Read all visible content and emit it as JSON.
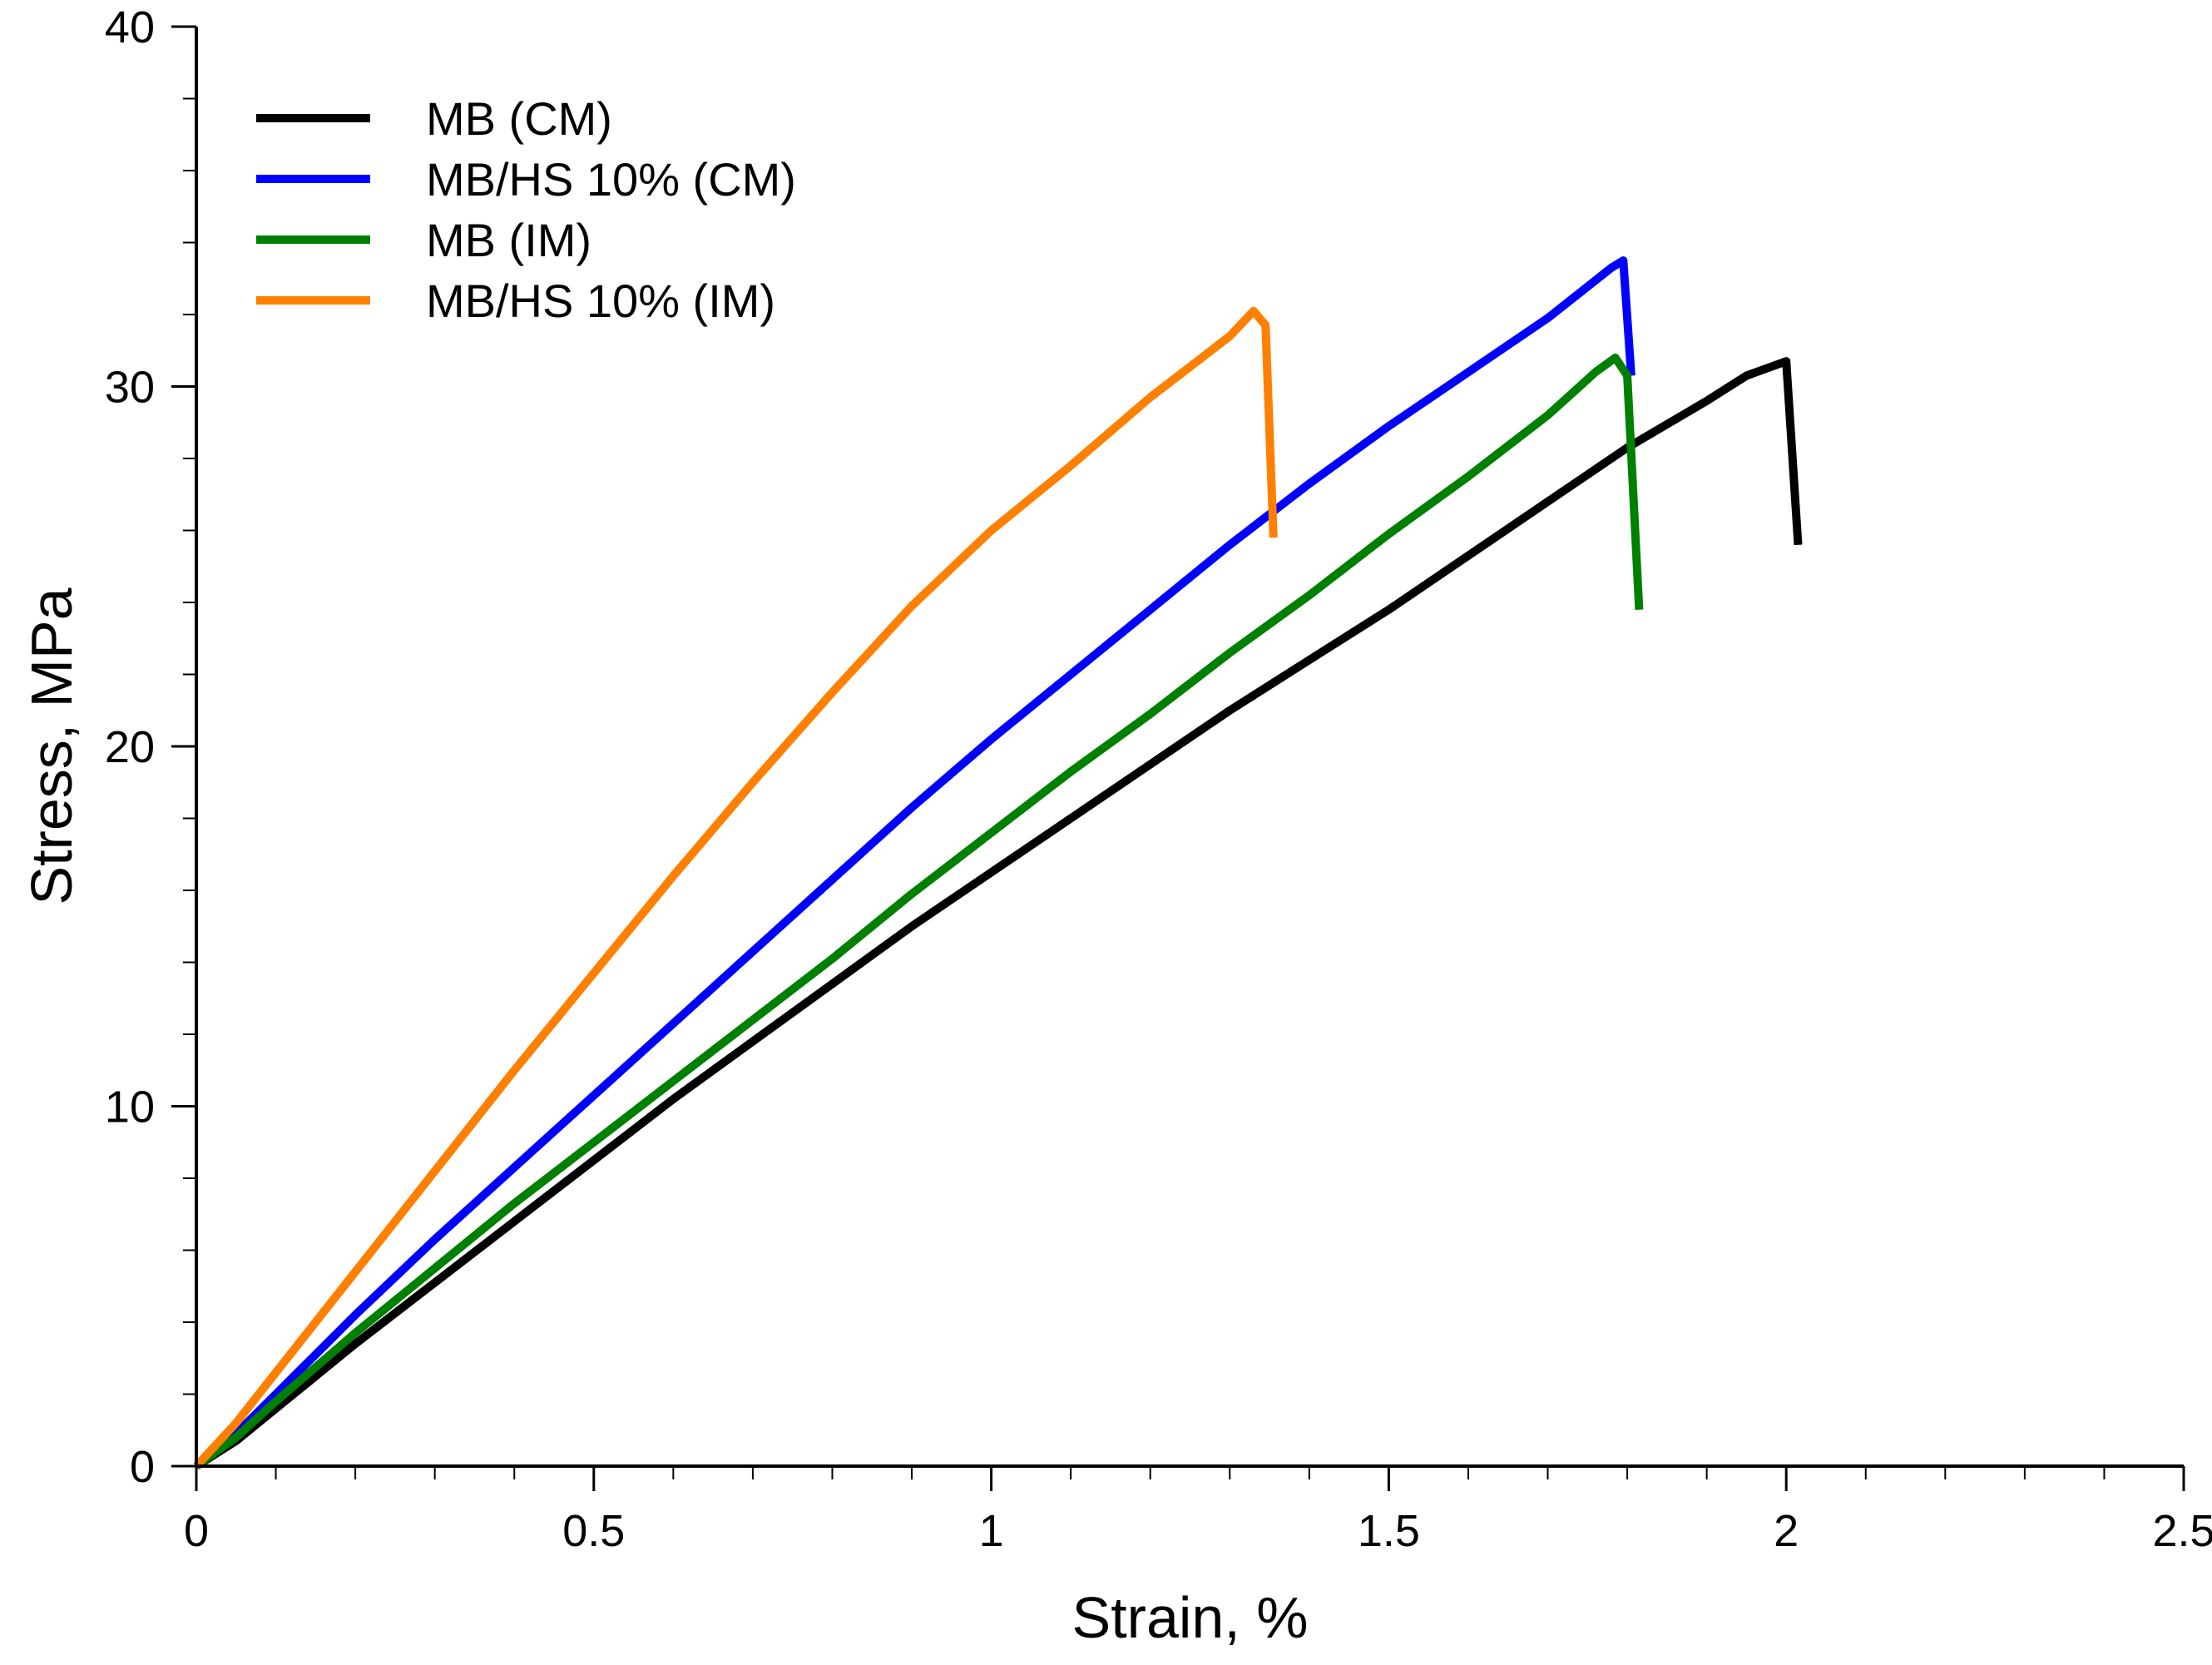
{
  "chart_data": {
    "type": "line",
    "title": "",
    "xlabel": "Strain, %",
    "ylabel": "Stress, MPa",
    "xlim": [
      0,
      2.5
    ],
    "ylim": [
      0,
      40
    ],
    "x_ticks": [
      0,
      0.5,
      1,
      1.5,
      2,
      2.5
    ],
    "x_tick_labels": [
      "0",
      "0.5",
      "1",
      "1.5",
      "2",
      "2.5"
    ],
    "y_ticks": [
      0,
      10,
      20,
      30,
      40
    ],
    "y_tick_labels": [
      "0",
      "10",
      "20",
      "30",
      "40"
    ],
    "x_minor_step": 0.1,
    "y_minor_step": 2,
    "grid": false,
    "legend_position": "top-left",
    "series": [
      {
        "name": "MB (CM)",
        "color": "#000000",
        "points": [
          [
            0,
            0
          ],
          [
            0.05,
            0.7
          ],
          [
            0.1,
            1.6
          ],
          [
            0.2,
            3.4
          ],
          [
            0.3,
            5.1
          ],
          [
            0.4,
            6.8
          ],
          [
            0.5,
            8.5
          ],
          [
            0.6,
            10.2
          ],
          [
            0.7,
            11.8
          ],
          [
            0.8,
            13.4
          ],
          [
            0.9,
            15.0
          ],
          [
            1.0,
            16.5
          ],
          [
            1.1,
            18.0
          ],
          [
            1.2,
            19.5
          ],
          [
            1.3,
            21.0
          ],
          [
            1.4,
            22.4
          ],
          [
            1.5,
            23.8
          ],
          [
            1.6,
            25.3
          ],
          [
            1.7,
            26.8
          ],
          [
            1.8,
            28.3
          ],
          [
            1.9,
            29.6
          ],
          [
            1.95,
            30.3
          ],
          [
            2.0,
            30.7
          ],
          [
            2.015,
            25.6
          ]
        ]
      },
      {
        "name": "MB/HS 10% (CM)",
        "color": "#0000ff",
        "points": [
          [
            0,
            0
          ],
          [
            0.05,
            0.9
          ],
          [
            0.1,
            2.0
          ],
          [
            0.2,
            4.2
          ],
          [
            0.3,
            6.3
          ],
          [
            0.4,
            8.3
          ],
          [
            0.5,
            10.3
          ],
          [
            0.6,
            12.3
          ],
          [
            0.7,
            14.3
          ],
          [
            0.8,
            16.3
          ],
          [
            0.9,
            18.3
          ],
          [
            1.0,
            20.2
          ],
          [
            1.1,
            22.0
          ],
          [
            1.2,
            23.8
          ],
          [
            1.3,
            25.6
          ],
          [
            1.4,
            27.3
          ],
          [
            1.5,
            28.9
          ],
          [
            1.6,
            30.4
          ],
          [
            1.7,
            31.9
          ],
          [
            1.78,
            33.3
          ],
          [
            1.795,
            33.5
          ],
          [
            1.805,
            30.3
          ]
        ]
      },
      {
        "name": "MB (IM)",
        "color": "#008000",
        "points": [
          [
            0,
            0
          ],
          [
            0.05,
            0.8
          ],
          [
            0.1,
            1.8
          ],
          [
            0.2,
            3.7
          ],
          [
            0.3,
            5.5
          ],
          [
            0.4,
            7.3
          ],
          [
            0.5,
            9.0
          ],
          [
            0.6,
            10.7
          ],
          [
            0.7,
            12.4
          ],
          [
            0.8,
            14.1
          ],
          [
            0.9,
            15.9
          ],
          [
            1.0,
            17.6
          ],
          [
            1.1,
            19.3
          ],
          [
            1.2,
            20.9
          ],
          [
            1.3,
            22.6
          ],
          [
            1.4,
            24.2
          ],
          [
            1.5,
            25.9
          ],
          [
            1.6,
            27.5
          ],
          [
            1.7,
            29.2
          ],
          [
            1.76,
            30.4
          ],
          [
            1.785,
            30.8
          ],
          [
            1.8,
            30.3
          ],
          [
            1.815,
            23.8
          ]
        ]
      },
      {
        "name": "MB/HS 10% (IM)",
        "color": "#ff7f00",
        "points": [
          [
            0,
            0
          ],
          [
            0.05,
            1.2
          ],
          [
            0.1,
            2.6
          ],
          [
            0.2,
            5.4
          ],
          [
            0.3,
            8.2
          ],
          [
            0.4,
            11.0
          ],
          [
            0.5,
            13.7
          ],
          [
            0.6,
            16.4
          ],
          [
            0.7,
            19.0
          ],
          [
            0.8,
            21.5
          ],
          [
            0.9,
            23.9
          ],
          [
            1.0,
            26.0
          ],
          [
            1.1,
            27.8
          ],
          [
            1.2,
            29.7
          ],
          [
            1.3,
            31.4
          ],
          [
            1.33,
            32.1
          ],
          [
            1.345,
            31.7
          ],
          [
            1.355,
            25.8
          ]
        ]
      }
    ]
  }
}
